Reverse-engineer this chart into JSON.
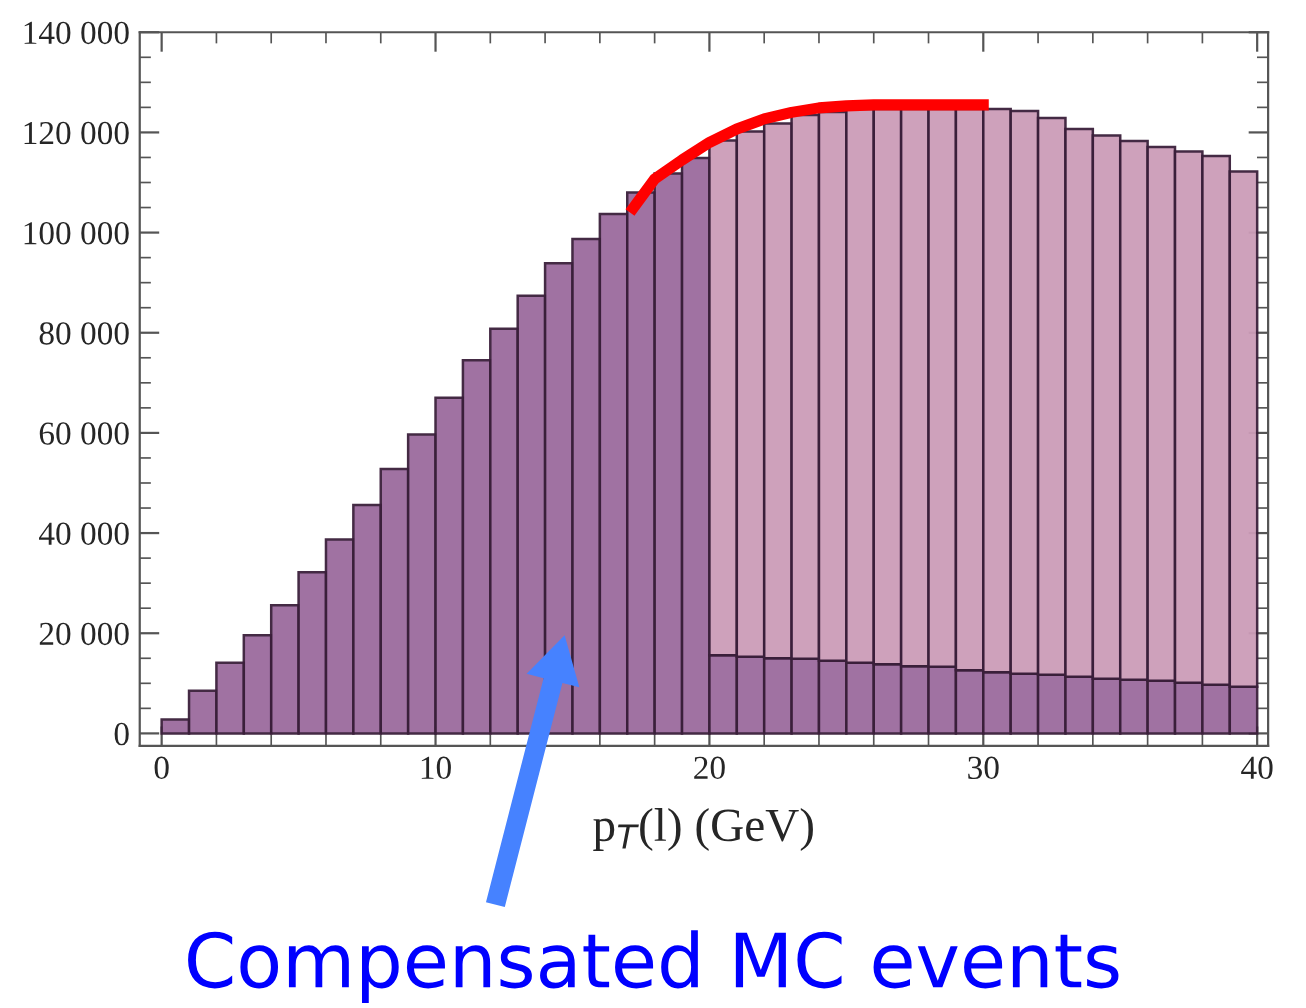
{
  "chart_data": {
    "type": "bar",
    "stacked": true,
    "xlabel": "p$_{T}$(l) (GeV)",
    "x": [
      0.5,
      1.5,
      2.5,
      3.5,
      4.5,
      5.5,
      6.5,
      7.5,
      8.5,
      9.5,
      10.5,
      11.5,
      12.5,
      13.5,
      14.5,
      15.5,
      16.5,
      17.5,
      18.5,
      19.5,
      20.5,
      21.5,
      22.5,
      23.5,
      24.5,
      25.5,
      26.5,
      27.5,
      28.5,
      29.5,
      30.5,
      31.5,
      32.5,
      33.5,
      34.5,
      35.5,
      36.5,
      37.5,
      38.5,
      39.5
    ],
    "series": [
      {
        "color": "#9b6b9e",
        "values": [
          2800,
          8500,
          14100,
          19600,
          25600,
          32200,
          38700,
          45600,
          52800,
          59700,
          67000,
          74500,
          80800,
          87400,
          93900,
          98700,
          103700,
          108000,
          111800,
          114900,
          15600,
          15300,
          15000,
          14900,
          14500,
          14100,
          13800,
          13400,
          13300,
          12600,
          12200,
          11900,
          11700,
          11300,
          10900,
          10700,
          10500,
          10100,
          9700,
          9300
        ]
      },
      {
        "color": "#cc9cb8",
        "values": [
          null,
          null,
          null,
          null,
          null,
          null,
          null,
          null,
          null,
          null,
          null,
          null,
          null,
          null,
          null,
          null,
          null,
          null,
          null,
          null,
          102800,
          104900,
          106800,
          108600,
          109600,
          110600,
          110900,
          111300,
          111400,
          112100,
          112500,
          112400,
          111200,
          109400,
          108500,
          107600,
          106600,
          106100,
          105600,
          102900
        ]
      },
      {
        "type": "line",
        "color": "#ff0000",
        "x": [
          17.1,
          18,
          19,
          20,
          21,
          22,
          23,
          24,
          25,
          26,
          27,
          28,
          29,
          30.2
        ],
        "values": [
          104000,
          110700,
          114500,
          118000,
          120700,
          122700,
          124000,
          124900,
          125300,
          125500,
          125500,
          125500,
          125500,
          125500
        ]
      }
    ],
    "xlim": [
      -0.8,
      40.4
    ],
    "xticks": [
      0,
      10,
      20,
      30,
      40
    ],
    "ylim": [
      -2500,
      140000
    ],
    "yticks": [
      {
        "value": 0,
        "label": "0"
      },
      {
        "value": 20000,
        "label": "20 000"
      },
      {
        "value": 40000,
        "label": "40 000"
      },
      {
        "value": 60000,
        "label": "60 000"
      },
      {
        "value": 80000,
        "label": "80 000"
      },
      {
        "value": 100000,
        "label": "100 000"
      },
      {
        "value": 120000,
        "label": "120 000"
      },
      {
        "value": 140000,
        "label": "140 000"
      }
    ],
    "annotations": [
      "Compensated MC events"
    ],
    "grid": false,
    "legend": false
  }
}
